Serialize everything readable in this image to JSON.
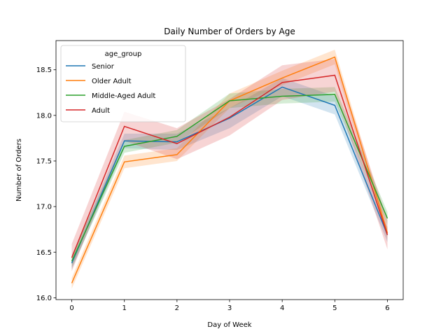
{
  "chart_data": {
    "type": "line",
    "title": "Daily Number of Orders by Age",
    "xlabel": "Day of Week",
    "ylabel": "Number of Orders",
    "x": [
      0,
      1,
      2,
      3,
      4,
      5,
      6
    ],
    "xlim": [
      -0.3,
      6.3
    ],
    "ylim": [
      15.98,
      18.82
    ],
    "xticks": [
      0,
      1,
      2,
      3,
      4,
      5,
      6
    ],
    "yticks": [
      16.0,
      16.5,
      17.0,
      17.5,
      18.0,
      18.5
    ],
    "ytick_labels": [
      "16.0",
      "16.5",
      "17.0",
      "17.5",
      "18.0",
      "18.5"
    ],
    "grid": false,
    "legend": {
      "title": "age_group",
      "placement": "top-left"
    },
    "series": [
      {
        "name": "Senior",
        "color": "#1f77b4",
        "values": [
          16.38,
          17.72,
          17.71,
          17.97,
          18.31,
          18.11,
          16.69
        ],
        "ci_low": [
          16.31,
          17.64,
          17.62,
          17.86,
          18.21,
          18.01,
          16.61
        ],
        "ci_high": [
          16.45,
          17.8,
          17.8,
          18.08,
          18.41,
          18.21,
          16.77
        ]
      },
      {
        "name": "Older Adult",
        "color": "#ff7f0e",
        "values": [
          16.16,
          17.49,
          17.57,
          18.16,
          18.41,
          18.64,
          16.71
        ],
        "ci_low": [
          16.1,
          17.42,
          17.5,
          18.08,
          18.33,
          18.56,
          16.64
        ],
        "ci_high": [
          16.22,
          17.56,
          17.64,
          18.24,
          18.49,
          18.72,
          16.78
        ]
      },
      {
        "name": "Middle-Aged Adult",
        "color": "#2ca02c",
        "values": [
          16.4,
          17.66,
          17.77,
          18.16,
          18.21,
          18.23,
          16.87
        ],
        "ci_low": [
          16.33,
          17.59,
          17.7,
          18.08,
          18.13,
          18.15,
          16.8
        ],
        "ci_high": [
          16.47,
          17.73,
          17.84,
          18.24,
          18.29,
          18.31,
          16.94
        ]
      },
      {
        "name": "Adult",
        "color": "#d62728",
        "values": [
          16.44,
          17.88,
          17.69,
          17.98,
          18.36,
          18.44,
          16.69
        ],
        "ci_low": [
          16.29,
          17.72,
          17.52,
          17.78,
          18.17,
          18.26,
          16.53
        ],
        "ci_high": [
          16.59,
          18.04,
          17.86,
          18.18,
          18.55,
          18.62,
          16.85
        ]
      }
    ]
  }
}
